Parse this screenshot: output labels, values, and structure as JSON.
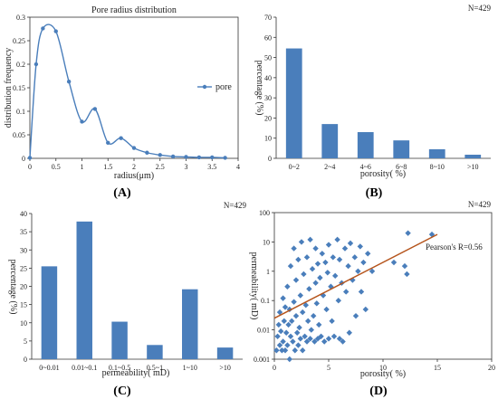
{
  "colors": {
    "accent": "#4a7ebb",
    "fit_line": "#b5541c",
    "axis": "#333333"
  },
  "panels": [
    {
      "label": "(A)"
    },
    {
      "label": "(B)"
    },
    {
      "label": "(C)"
    },
    {
      "label": "(D)"
    }
  ],
  "chart_data": [
    {
      "type": "line",
      "panel": "A",
      "title": "Pore radius distribution",
      "xlabel": "radius(μm)",
      "ylabel": "distribution frequency",
      "legend": "pore",
      "legend_position": "right",
      "xlim": [
        0,
        4
      ],
      "ylim": [
        0,
        0.3
      ],
      "xticks": [
        "0",
        "0.5",
        "1",
        "1.5",
        "2",
        "2.5",
        "3",
        "3.5",
        "4"
      ],
      "yticks": [
        "0",
        "0.05",
        "0.1",
        "0.15",
        "0.2",
        "0.25",
        "0.3"
      ],
      "x": [
        0,
        0.12,
        0.25,
        0.5,
        0.75,
        1.0,
        1.25,
        1.5,
        1.75,
        2.0,
        2.25,
        2.5,
        2.75,
        3.0,
        3.25,
        3.5,
        3.75
      ],
      "series": [
        {
          "name": "pore",
          "values": [
            0.001,
            0.2,
            0.276,
            0.27,
            0.163,
            0.078,
            0.105,
            0.033,
            0.043,
            0.022,
            0.012,
            0.007,
            0.004,
            0.003,
            0.002,
            0.002,
            0.001
          ]
        }
      ]
    },
    {
      "type": "bar",
      "panel": "B",
      "note": "N=429",
      "xlabel": "porosity( %)",
      "ylabel": "percentage (%)",
      "ylim": [
        0,
        70
      ],
      "yticks": [
        "0",
        "10",
        "20",
        "30",
        "40",
        "50",
        "60",
        "70"
      ],
      "categories": [
        "0~2",
        "2~4",
        "4~6",
        "6~8",
        "8~10",
        ">10"
      ],
      "values": [
        54.5,
        17,
        13,
        8.9,
        4.5,
        1.8
      ]
    },
    {
      "type": "bar",
      "panel": "C",
      "note": "N=429",
      "xlabel": "permeability( mD)",
      "ylabel": "percentage (%)",
      "ylim": [
        0,
        40
      ],
      "yticks": [
        "0",
        "5",
        "10",
        "15",
        "20",
        "25",
        "30",
        "35",
        "40"
      ],
      "categories": [
        "0~0.01",
        "0.01~0.1",
        "0.1~0.5",
        "0.5~1",
        "1~10",
        ">10"
      ],
      "values": [
        25.5,
        37.8,
        10.3,
        3.9,
        19.2,
        3.2
      ]
    },
    {
      "type": "scatter",
      "panel": "D",
      "note": "N=429",
      "annotation": "Pearson's R=0.56",
      "xlabel": "porosity( %)",
      "ylabel": "permeability( mD)",
      "xlim": [
        0,
        20
      ],
      "ylim": [
        0.001,
        100
      ],
      "y_scale": "log",
      "xticks": [
        "0",
        "5",
        "10",
        "15",
        "20"
      ],
      "yticks": [
        "0.001",
        "0.01",
        "0.1",
        "1",
        "10",
        "100"
      ],
      "fit_line": {
        "x": [
          0,
          15
        ],
        "y": [
          0.025,
          18
        ]
      },
      "points": [
        [
          0.2,
          0.002
        ],
        [
          0.3,
          0.006
        ],
        [
          0.4,
          0.015
        ],
        [
          0.5,
          0.003
        ],
        [
          0.5,
          0.04
        ],
        [
          0.6,
          0.009
        ],
        [
          0.7,
          0.002
        ],
        [
          0.8,
          0.12
        ],
        [
          0.8,
          0.004
        ],
        [
          0.9,
          0.02
        ],
        [
          1.0,
          0.06
        ],
        [
          1.0,
          0.002
        ],
        [
          1.1,
          0.008
        ],
        [
          1.2,
          0.3
        ],
        [
          1.2,
          0.003
        ],
        [
          1.3,
          0.015
        ],
        [
          1.4,
          0.05
        ],
        [
          1.4,
          0.001
        ],
        [
          1.5,
          1.5
        ],
        [
          1.5,
          0.006
        ],
        [
          1.6,
          0.02
        ],
        [
          1.7,
          0.004
        ],
        [
          1.8,
          0.09
        ],
        [
          1.8,
          6
        ],
        [
          1.9,
          0.002
        ],
        [
          2.0,
          0.03
        ],
        [
          2.0,
          0.5
        ],
        [
          2.1,
          0.008
        ],
        [
          2.2,
          0.003
        ],
        [
          2.2,
          2.5
        ],
        [
          2.3,
          0.012
        ],
        [
          2.4,
          0.15
        ],
        [
          2.4,
          0.005
        ],
        [
          2.5,
          10
        ],
        [
          2.6,
          0.04
        ],
        [
          2.6,
          0.002
        ],
        [
          2.7,
          0.8
        ],
        [
          2.8,
          0.006
        ],
        [
          2.9,
          0.07
        ],
        [
          3.0,
          0.004
        ],
        [
          3.0,
          3
        ],
        [
          3.1,
          0.02
        ],
        [
          3.2,
          0.25
        ],
        [
          3.3,
          0.005
        ],
        [
          3.3,
          12
        ],
        [
          3.4,
          0.01
        ],
        [
          3.5,
          1.2
        ],
        [
          3.6,
          0.03
        ],
        [
          3.7,
          0.004
        ],
        [
          3.8,
          0.4
        ],
        [
          3.8,
          6
        ],
        [
          3.9,
          0.08
        ],
        [
          4.0,
          0.005
        ],
        [
          4.0,
          1.8
        ],
        [
          4.1,
          0.015
        ],
        [
          4.2,
          0.6
        ],
        [
          4.3,
          0.006
        ],
        [
          4.4,
          4
        ],
        [
          4.5,
          0.15
        ],
        [
          4.6,
          0.004
        ],
        [
          4.7,
          2
        ],
        [
          4.8,
          0.05
        ],
        [
          4.9,
          0.9
        ],
        [
          5.0,
          0.005
        ],
        [
          5.0,
          8
        ],
        [
          5.2,
          0.3
        ],
        [
          5.3,
          0.02
        ],
        [
          5.4,
          3
        ],
        [
          5.5,
          0.006
        ],
        [
          5.6,
          0.7
        ],
        [
          5.8,
          12
        ],
        [
          5.9,
          0.1
        ],
        [
          6.0,
          0.005
        ],
        [
          6.0,
          2.5
        ],
        [
          6.2,
          0.4
        ],
        [
          6.3,
          0.004
        ],
        [
          6.5,
          6
        ],
        [
          6.6,
          0.2
        ],
        [
          6.8,
          1.5
        ],
        [
          6.9,
          0.008
        ],
        [
          7.0,
          9
        ],
        [
          7.2,
          0.5
        ],
        [
          7.4,
          3
        ],
        [
          7.5,
          0.03
        ],
        [
          7.7,
          1
        ],
        [
          7.9,
          7
        ],
        [
          8.0,
          0.2
        ],
        [
          8.2,
          2
        ],
        [
          8.4,
          0.05
        ],
        [
          8.6,
          4
        ],
        [
          9.0,
          1
        ],
        [
          11.0,
          2
        ],
        [
          12.0,
          1.5
        ],
        [
          12.2,
          0.8
        ],
        [
          12.3,
          20
        ],
        [
          14.5,
          18
        ]
      ]
    }
  ]
}
